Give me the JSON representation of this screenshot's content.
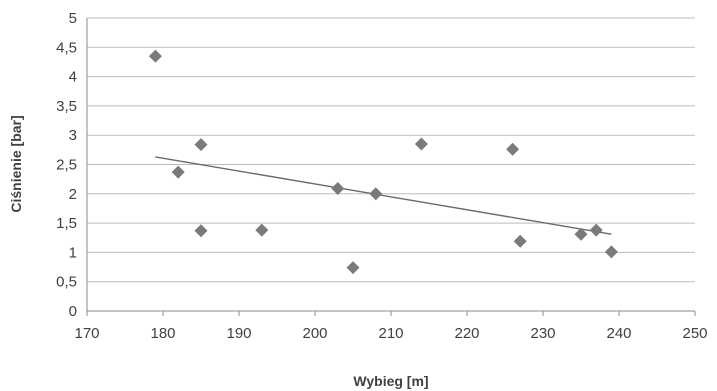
{
  "chart_data": {
    "type": "scatter",
    "xlabel": "Wybieg [m]",
    "ylabel": "Ciśnienie [bar]",
    "xlim": [
      170,
      250
    ],
    "ylim": [
      0,
      5
    ],
    "x_ticks": [
      170,
      180,
      190,
      200,
      210,
      220,
      230,
      240,
      250
    ],
    "y_ticks": [
      0,
      0.5,
      1,
      1.5,
      2,
      2.5,
      3,
      3.5,
      4,
      4.5,
      5
    ],
    "x_tick_labels": [
      "170",
      "180",
      "190",
      "200",
      "210",
      "220",
      "230",
      "240",
      "250"
    ],
    "y_tick_labels": [
      "0",
      "0,5",
      "1",
      "1,5",
      "2",
      "2,5",
      "3",
      "3,5",
      "4",
      "4,5",
      "5"
    ],
    "grid": "horizontal",
    "legend": "none",
    "marker": "diamond",
    "series": [
      {
        "points": [
          {
            "x": 179,
            "y": 4.35
          },
          {
            "x": 182,
            "y": 2.37
          },
          {
            "x": 185,
            "y": 2.84
          },
          {
            "x": 185,
            "y": 1.37
          },
          {
            "x": 193,
            "y": 1.38
          },
          {
            "x": 203,
            "y": 2.09
          },
          {
            "x": 205,
            "y": 0.74
          },
          {
            "x": 208,
            "y": 2.0
          },
          {
            "x": 214,
            "y": 2.85
          },
          {
            "x": 226,
            "y": 2.76
          },
          {
            "x": 227,
            "y": 1.19
          },
          {
            "x": 235,
            "y": 1.31
          },
          {
            "x": 237,
            "y": 1.38
          },
          {
            "x": 239,
            "y": 1.01
          }
        ]
      }
    ],
    "trendline": {
      "type": "linear",
      "x": [
        179,
        239
      ],
      "y": [
        2.63,
        1.31
      ]
    },
    "colors": {
      "marker": "#7a7a7a",
      "trendline": "#6a6a6a",
      "grid": "#bdbdbd",
      "text": "#404040"
    }
  }
}
